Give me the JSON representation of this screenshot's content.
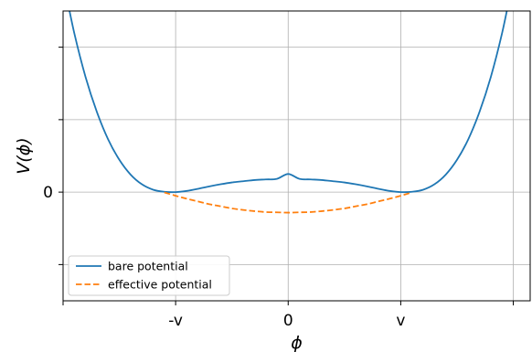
{
  "chart_data": {
    "type": "line",
    "xlabel": "ϕ",
    "ylabel": "V(ϕ)",
    "xlim": [
      -2.0,
      2.15
    ],
    "ylim": [
      -0.36,
      0.6
    ],
    "grid": true,
    "legend_position": "bottom-left",
    "x_ticks": [
      {
        "value": -2.0,
        "label": ""
      },
      {
        "value": -1.0,
        "label": "-v"
      },
      {
        "value": 0.0,
        "label": "0"
      },
      {
        "value": 1.0,
        "label": "v"
      },
      {
        "value": 2.0,
        "label": ""
      }
    ],
    "y_ticks": [
      {
        "value": -0.24,
        "label": ""
      },
      {
        "value": 0.0,
        "label": "0"
      },
      {
        "value": 0.24,
        "label": ""
      },
      {
        "value": 0.48,
        "label": ""
      }
    ],
    "series": [
      {
        "name": "bare potential",
        "color": "#1f77b4",
        "style": "solid",
        "x": [
          -1.98,
          -1.9,
          -1.8,
          -1.7,
          -1.6,
          -1.5,
          -1.4,
          -1.3,
          -1.2,
          -1.1,
          -1.0,
          -0.9,
          -0.8,
          -0.7,
          -0.6,
          -0.5,
          -0.4,
          -0.3,
          -0.2,
          -0.1,
          0.0,
          0.1,
          0.2,
          0.3,
          0.4,
          0.5,
          0.6,
          0.7,
          0.8,
          0.9,
          1.0,
          1.1,
          1.2,
          1.3,
          1.4,
          1.5,
          1.6,
          1.7,
          1.8,
          1.9,
          1.98
        ],
        "y": [
          0.669,
          0.526,
          0.381,
          0.266,
          0.175,
          0.107,
          0.058,
          0.026,
          0.008,
          0.001,
          0.0,
          0.004,
          0.011,
          0.019,
          0.026,
          0.032,
          0.036,
          0.04,
          0.042,
          0.044,
          0.06,
          0.044,
          0.042,
          0.04,
          0.036,
          0.032,
          0.026,
          0.019,
          0.011,
          0.004,
          0.0,
          0.001,
          0.008,
          0.026,
          0.058,
          0.107,
          0.175,
          0.266,
          0.381,
          0.526,
          0.669
        ]
      },
      {
        "name": "effective potential",
        "color": "#ff7f0e",
        "style": "dashed",
        "x": [
          -1.1,
          -1.0,
          -0.9,
          -0.8,
          -0.7,
          -0.6,
          -0.5,
          -0.4,
          -0.3,
          -0.2,
          -0.1,
          0.0,
          0.1,
          0.2,
          0.3,
          0.4,
          0.5,
          0.6,
          0.7,
          0.8,
          0.9,
          1.0,
          1.1
        ],
        "y": [
          -0.001,
          -0.012,
          -0.022,
          -0.031,
          -0.04,
          -0.047,
          -0.054,
          -0.059,
          -0.063,
          -0.066,
          -0.067,
          -0.068,
          -0.067,
          -0.066,
          -0.063,
          -0.059,
          -0.054,
          -0.047,
          -0.04,
          -0.031,
          -0.022,
          -0.012,
          -0.001
        ]
      }
    ]
  }
}
